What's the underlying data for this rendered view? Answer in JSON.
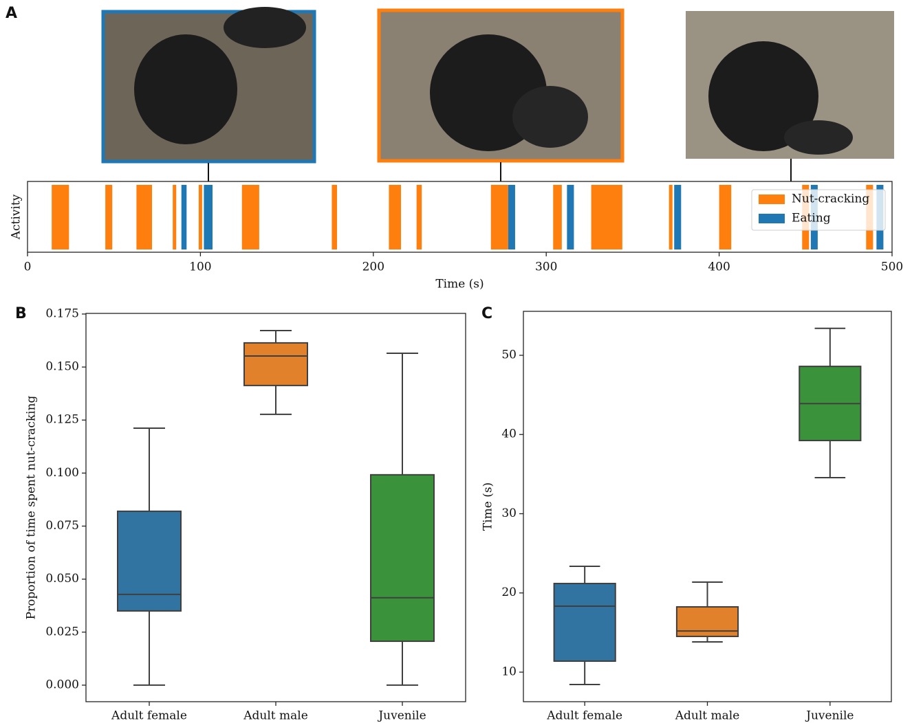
{
  "chart_data": [
    {
      "type": "timeline",
      "panel_label": "A",
      "xlabel": "Time (s)",
      "ylabel": "Activity",
      "xlim": [
        0,
        500
      ],
      "xticks": [
        0,
        100,
        200,
        300,
        400,
        500
      ],
      "legend": "upper right",
      "series": [
        {
          "name": "Nut-cracking",
          "color": "#ff7f0e",
          "starts": [
            14,
            45,
            63,
            84,
            99,
            124,
            176,
            209,
            225,
            268,
            304,
            326,
            371,
            400,
            448,
            485
          ],
          "ends": [
            24,
            49,
            72,
            86,
            101,
            134,
            179,
            216,
            228,
            278,
            309,
            344,
            373,
            407,
            452,
            489
          ]
        },
        {
          "name": "Eating",
          "color": "#1f77b4",
          "starts": [
            89,
            102,
            278,
            312,
            374,
            453,
            491
          ],
          "ends": [
            92,
            107,
            282,
            316,
            378,
            457,
            495
          ]
        }
      ]
    },
    {
      "type": "box",
      "panel_label": "B",
      "ylabel": "Proportion of time spent nut-cracking",
      "categories": [
        "Adult female",
        "Adult male",
        "Juvenile"
      ],
      "colors": [
        "#3274a1",
        "#e1812c",
        "#3a923a"
      ],
      "ylim": [
        -0.0078,
        0.1753
      ],
      "yticks": [
        {
          "value": 0,
          "label": "0.000"
        },
        {
          "value": 0.025,
          "label": "0.025"
        },
        {
          "value": 0.05,
          "label": "0.050"
        },
        {
          "value": 0.075,
          "label": "0.075"
        },
        {
          "value": 0.1,
          "label": "0.100"
        },
        {
          "value": 0.125,
          "label": "0.125"
        },
        {
          "value": 0.15,
          "label": "0.150"
        },
        {
          "value": 0.175,
          "label": "0.175"
        }
      ],
      "min": [
        0,
        0.1277,
        0
      ],
      "q1": [
        0.035,
        0.1413,
        0.0207
      ],
      "median": [
        0.0428,
        0.1552,
        0.0412
      ],
      "q3": [
        0.082,
        0.1614,
        0.0992
      ],
      "max": [
        0.1212,
        0.1672,
        0.1565
      ]
    },
    {
      "type": "box",
      "panel_label": "C",
      "ylabel": "Time (s)",
      "categories": [
        "Adult female",
        "Adult male",
        "Juvenile"
      ],
      "colors": [
        "#3274a1",
        "#e1812c",
        "#3a923a"
      ],
      "ylim": [
        6.27,
        55.55
      ],
      "yticks": [
        10,
        20,
        30,
        40,
        50
      ],
      "min": [
        8.44,
        13.82,
        34.55
      ],
      "q1": [
        11.39,
        14.51,
        39.24
      ],
      "median": [
        18.33,
        15.2,
        43.9
      ],
      "q3": [
        21.19,
        18.24,
        48.6
      ],
      "max": [
        23.36,
        21.37,
        53.4
      ]
    }
  ]
}
